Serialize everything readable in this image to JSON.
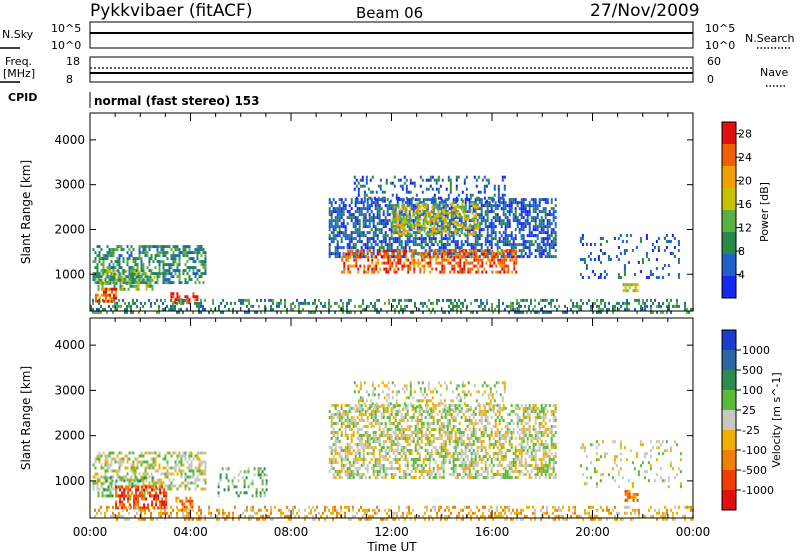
{
  "header": {
    "station": "Pykkvibaer (fitACF)",
    "beam": "Beam 06",
    "date": "27/Nov/2009"
  },
  "top_panels": {
    "nsky_label": "N.Sky",
    "nsky_ticks": [
      "10^5",
      "10^0"
    ],
    "nsearch_label": "N.Search",
    "nsearch_ticks": [
      "10^5",
      "10^0"
    ],
    "freq_label": "Freq.",
    "freq_unit": "[MHz]",
    "freq_ticks": [
      "18",
      "8"
    ],
    "nave_label": "Nave",
    "nave_ticks": [
      "60",
      "0"
    ],
    "cpid_label": "CPID",
    "cpid_value": "normal (fast stereo) 153"
  },
  "colors": {
    "power_scale": [
      "#1428f0",
      "#1e60c8",
      "#2a8a4a",
      "#5ab040",
      "#c8c000",
      "#f0a000",
      "#f06000",
      "#e01010"
    ],
    "velocity_scale": [
      "#1a3cc8",
      "#2a66a0",
      "#2e8a50",
      "#5aba3a",
      "#c8c8c0",
      "#f0b000",
      "#f08000",
      "#f04000",
      "#e01010"
    ]
  },
  "chart_data": [
    {
      "type": "heatmap",
      "name": "power",
      "ylabel": "Slant Range [km]",
      "yticks": [
        1000,
        2000,
        3000,
        4000
      ],
      "ylim": [
        180,
        4600
      ],
      "xlim": [
        0,
        24
      ],
      "xticks": [
        "00:00",
        "04:00",
        "08:00",
        "12:00",
        "16:00",
        "20:00",
        "00:00"
      ],
      "colorbar_label": "Power [dB]",
      "colorbar_ticks": [
        4,
        8,
        12,
        16,
        20,
        24,
        28
      ],
      "colorbar_range": [
        0,
        30
      ],
      "regions": [
        {
          "t0": 0.1,
          "t1": 4.6,
          "r0": 800,
          "r1": 1650,
          "lvl": 2,
          "d": 0.55
        },
        {
          "t0": 0.3,
          "t1": 2.6,
          "r0": 650,
          "r1": 1100,
          "lvl": 3,
          "d": 0.5
        },
        {
          "t0": 0.2,
          "t1": 1.0,
          "r0": 400,
          "r1": 700,
          "lvl": 6,
          "d": 0.5
        },
        {
          "t0": 3.2,
          "t1": 4.3,
          "r0": 350,
          "r1": 600,
          "lvl": 7,
          "d": 0.6
        },
        {
          "t0": 0.0,
          "t1": 24.0,
          "r0": 180,
          "r1": 450,
          "lvl": 2,
          "d": 0.35
        },
        {
          "t0": 9.5,
          "t1": 18.5,
          "r0": 1400,
          "r1": 2700,
          "lvl": 1,
          "d": 0.6
        },
        {
          "t0": 10.0,
          "t1": 17.0,
          "r0": 1050,
          "r1": 1550,
          "lvl": 6,
          "d": 0.55
        },
        {
          "t0": 12.0,
          "t1": 15.5,
          "r0": 1900,
          "r1": 2600,
          "lvl": 4,
          "d": 0.5
        },
        {
          "t0": 10.5,
          "t1": 16.5,
          "r0": 2600,
          "r1": 3200,
          "lvl": 1,
          "d": 0.25
        },
        {
          "t0": 19.5,
          "t1": 23.5,
          "r0": 900,
          "r1": 1900,
          "lvl": 1,
          "d": 0.15
        },
        {
          "t0": 21.2,
          "t1": 21.8,
          "r0": 600,
          "r1": 800,
          "lvl": 4,
          "d": 0.6
        }
      ]
    },
    {
      "type": "heatmap",
      "name": "velocity",
      "ylabel": "Slant Range [km]",
      "yticks": [
        1000,
        2000,
        3000,
        4000
      ],
      "ylim": [
        180,
        4600
      ],
      "xlim": [
        0,
        24
      ],
      "xticks": [
        "00:00",
        "04:00",
        "08:00",
        "12:00",
        "16:00",
        "20:00",
        "00:00"
      ],
      "xlabel": "Time UT",
      "colorbar_label": "Velocity [m s^-1]",
      "colorbar_ticks": [
        "1000",
        "500",
        "100",
        "25",
        "-25",
        "-100",
        "-500",
        "-1000"
      ],
      "regions": [
        {
          "t0": 0.1,
          "t1": 4.6,
          "r0": 800,
          "r1": 1650,
          "lvl": 4,
          "d": 0.5
        },
        {
          "t0": 0.3,
          "t1": 2.6,
          "r0": 650,
          "r1": 1100,
          "lvl": 3,
          "d": 0.3
        },
        {
          "t0": 1.0,
          "t1": 3.0,
          "r0": 400,
          "r1": 900,
          "lvl": 7,
          "d": 0.6
        },
        {
          "t0": 3.4,
          "t1": 4.1,
          "r0": 350,
          "r1": 650,
          "lvl": 6,
          "d": 0.6
        },
        {
          "t0": 0.0,
          "t1": 24.0,
          "r0": 180,
          "r1": 450,
          "lvl": 5,
          "d": 0.35
        },
        {
          "t0": 9.5,
          "t1": 18.5,
          "r0": 1050,
          "r1": 2700,
          "lvl": 4,
          "d": 0.55
        },
        {
          "t0": 10.5,
          "t1": 16.5,
          "r0": 2600,
          "r1": 3200,
          "lvl": 4,
          "d": 0.25
        },
        {
          "t0": 5.0,
          "t1": 7.0,
          "r0": 700,
          "r1": 1300,
          "lvl": 3,
          "d": 0.25
        },
        {
          "t0": 19.5,
          "t1": 23.5,
          "r0": 900,
          "r1": 1900,
          "lvl": 4,
          "d": 0.15
        },
        {
          "t0": 21.2,
          "t1": 21.8,
          "r0": 600,
          "r1": 800,
          "lvl": 6,
          "d": 0.6
        }
      ]
    }
  ]
}
